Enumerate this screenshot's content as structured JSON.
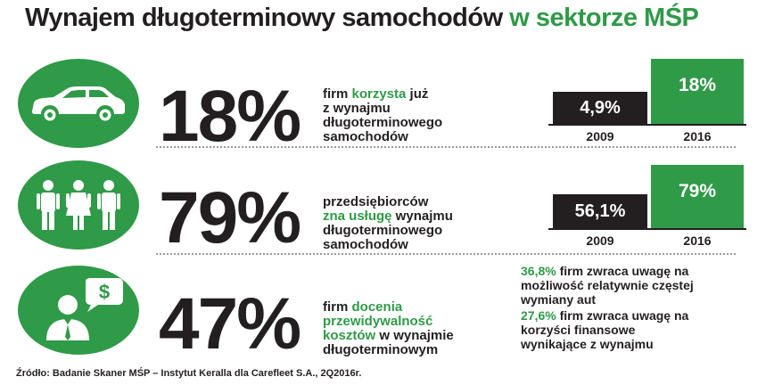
{
  "title": {
    "main": "Wynajem długoterminowy samochodów",
    "highlight": "w sektorze MŚP"
  },
  "rows": [
    {
      "icon": "car-icon",
      "percent": "18%",
      "desc_line1_a": "firm ",
      "desc_line1_g": "korzysta",
      "desc_line1_b": " już",
      "desc_line2": "z wynajmu",
      "desc_line3": "długoterminowego",
      "desc_line4": "samochodów",
      "value_2009": "4,9%",
      "value_2016": "18%",
      "year_a": "2009",
      "year_b": "2016"
    },
    {
      "icon": "people-icon",
      "percent": "79%",
      "desc_line1": "przedsiębiorców",
      "desc_line2_g": "zna usługę",
      "desc_line2_b": " wynajmu",
      "desc_line3": "długoterminowego",
      "desc_line4": "samochodów",
      "value_2009": "56,1%",
      "value_2016": "79%",
      "year_a": "2009",
      "year_b": "2016"
    },
    {
      "icon": "businessman-dollar-icon",
      "percent": "47%",
      "desc_line1_a": "firm ",
      "desc_line1_g": "docenia",
      "desc_line2_g": "przewidywalność",
      "desc_line3_g": "kosztów",
      "desc_line3_b": " w wynajmie",
      "desc_line4": "długoterminowym",
      "stat1_g": "36,8%",
      "stat1_a": " firm zwraca uwagę na",
      "stat1_b": "możliwość relatywnie częstej",
      "stat1_c": "wymiany aut",
      "stat2_g": "27,6%",
      "stat2_a": " firm zwraca uwagę na",
      "stat2_b": "korzyści finansowe",
      "stat2_c": "wynikające z wynajmu"
    }
  ],
  "source": "Źródło: Badanie Skaner MŚP – Instytut Keralla dla Carefleet S.A., 2Q2016r.",
  "colors": {
    "green": "#2f9a47",
    "dark": "#231f20"
  }
}
